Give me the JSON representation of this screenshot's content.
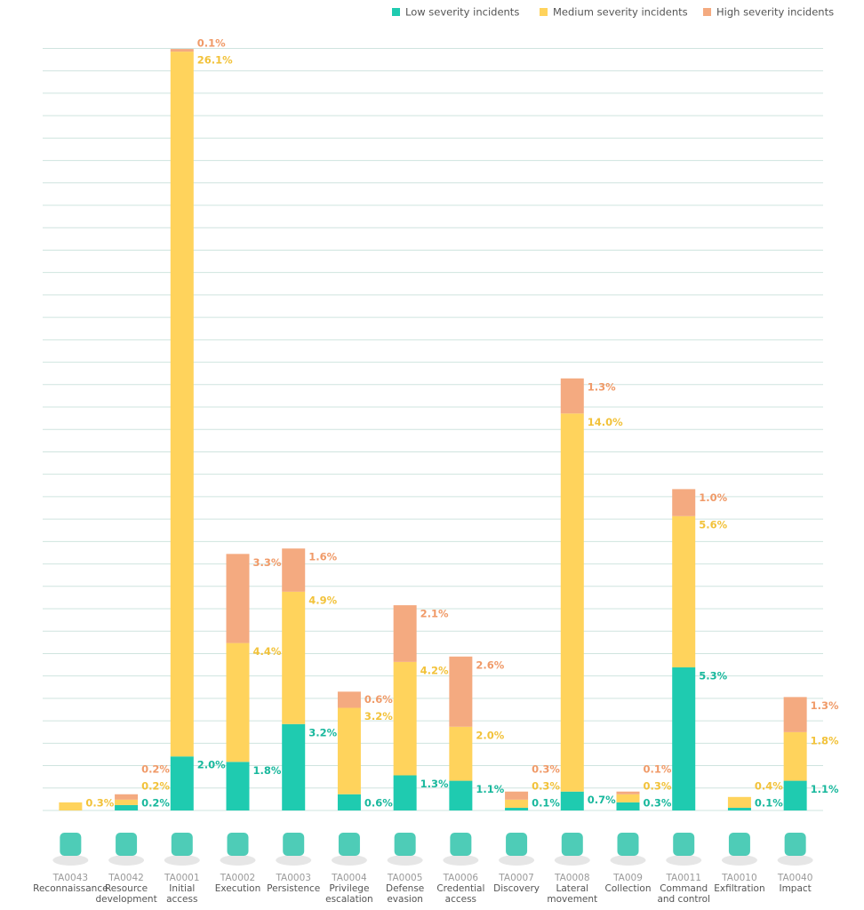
{
  "chart_data": {
    "type": "stacked-bar",
    "codes": [
      "TA0043",
      "TA0042",
      "TA0001",
      "TA0002",
      "TA0003",
      "TA0004",
      "TA0005",
      "TA0006",
      "TA0007",
      "TA0008",
      "TA009",
      "TA0011",
      "TA0010",
      "TA0040"
    ],
    "categories": [
      "Reconnaissance",
      "Resource development",
      "Initial access",
      "Execution",
      "Persistence",
      "Privilege escalation",
      "Defense evasion",
      "Credential access",
      "Discovery",
      "Lateral movement",
      "Collection",
      "Command and control",
      "Exfiltration",
      "Impact"
    ],
    "series": [
      {
        "name": "Low severity incidents",
        "color": "#1fcbb0",
        "label_color": "#19b89d",
        "values": [
          null,
          0.2,
          2.0,
          1.8,
          3.2,
          0.6,
          1.3,
          1.1,
          0.1,
          0.7,
          0.3,
          5.3,
          0.1,
          1.1
        ],
        "value_labels": [
          null,
          "0.2%",
          "2.0%",
          "1.8%",
          "3.2%",
          "0.6%",
          "1.3%",
          "1.1%",
          "0.1%",
          "0.7%",
          "0.3%",
          "5.3%",
          "0.1%",
          "1.1%"
        ]
      },
      {
        "name": "Medium severity incidents",
        "color": "#ffd35c",
        "label_color": "#f2c23a",
        "values": [
          0.3,
          0.2,
          26.1,
          4.4,
          4.9,
          3.2,
          4.2,
          2.0,
          0.3,
          14.0,
          0.3,
          5.6,
          0.4,
          1.8
        ],
        "value_labels": [
          "0.3%",
          "0.2%",
          "26.1%",
          "4.4%",
          "4.9%",
          "3.2%",
          "4.2%",
          "2.0%",
          "0.3%",
          "14.0%",
          "0.3%",
          "5.6%",
          "0.4%",
          "1.8%"
        ]
      },
      {
        "name": "High severity incidents",
        "color": "#f4aa80",
        "label_color": "#f09a68",
        "values": [
          null,
          0.2,
          0.1,
          3.3,
          1.6,
          0.6,
          2.1,
          2.6,
          0.3,
          1.3,
          0.1,
          1.0,
          null,
          1.3
        ],
        "value_labels": [
          null,
          "0.2%",
          "0.1%",
          "3.3%",
          "1.6%",
          "0.6%",
          "2.1%",
          "2.6%",
          "0.3%",
          "1.3%",
          "0.1%",
          "1.0%",
          null,
          "1.3%"
        ]
      }
    ],
    "ylim": [
      0,
      28.4
    ],
    "yticks": [
      0,
      0.83,
      1.66,
      2.49,
      3.32,
      4.15,
      4.98,
      5.81,
      6.64,
      7.47,
      8.3,
      9.13,
      9.96,
      10.79,
      11.62,
      12.45,
      13.28,
      14.11,
      14.94,
      15.77,
      16.6,
      17.43,
      18.26,
      19.09,
      19.92,
      20.75,
      21.58,
      22.41,
      23.24,
      24.07,
      24.9,
      25.73,
      26.56,
      27.39,
      28.22
    ],
    "grid": true,
    "legend": "top-right"
  }
}
